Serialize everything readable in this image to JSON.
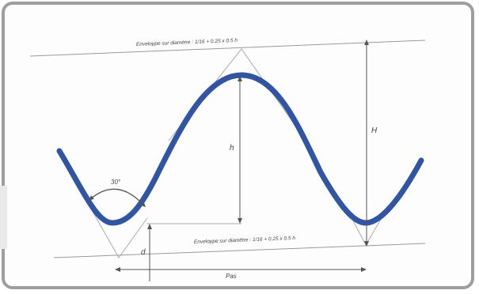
{
  "labels": {
    "top_line": "Enveloppe sur diamètre : 1/16 + 0.25 x 0.5 h",
    "bottom_line": "Enveloppe sur diamètre : 1/16 + 0.25 x 0.5 h",
    "angle": "30°",
    "h": "h",
    "H": "H",
    "d": "d",
    "pas": "Pas"
  },
  "colors": {
    "wave": "#2f55a4",
    "line": "#888888",
    "frame": "#9e9e9e",
    "text": "#444444"
  }
}
